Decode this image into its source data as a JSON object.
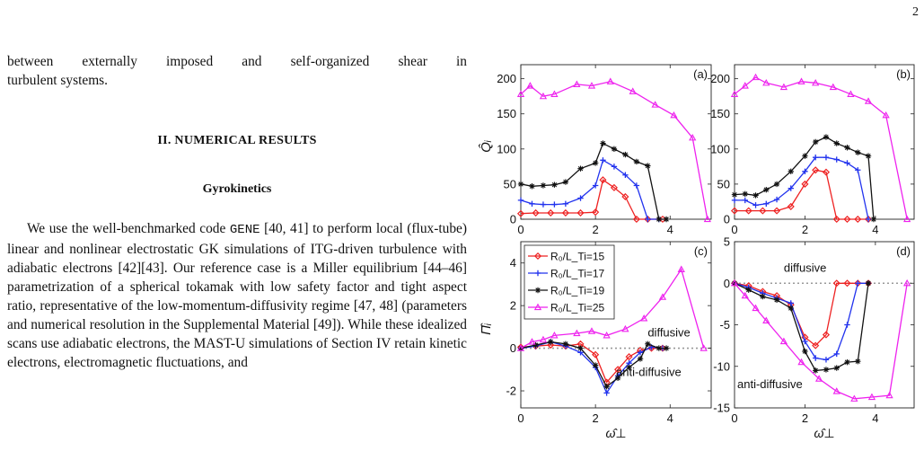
{
  "page": {
    "number": "2"
  },
  "text": {
    "intro_lines": [
      "between externally imposed and self-organized shear in",
      "turbulent systems."
    ],
    "section_heading": "II.   NUMERICAL RESULTS",
    "subsection_heading": "Gyrokinetics",
    "para1_start": "We use the well-benchmarked code ",
    "para1_code": "GENE",
    "para1_rest": " [40, 41] to perform local (flux-tube) linear and nonlinear electrostatic GK simulations of ITG-driven turbulence with adiabatic electrons [42][43]. Our reference case is a Miller equilibrium [44–46] parametrization of a spherical tokamak with low safety factor and tight aspect ratio, representative of the low-momentum-diffusivity regime [47, 48] (parameters and numerical resolution in the Supplemental Material [49]). While these idealized scans use adiabatic electrons, the MAST-U simulations of Section IV retain kinetic electrons, electromagnetic fluctuations, and"
  },
  "chart_data": [
    {
      "panel": "(a)",
      "type": "line",
      "ylabel": "Q̂ᵢ",
      "xlabel": "",
      "xlim": [
        0,
        5.1
      ],
      "ylim": [
        0,
        220
      ],
      "yticks": [
        "0",
        "50",
        "100",
        "150",
        "200"
      ],
      "xticks": [
        "0",
        "2",
        "4"
      ],
      "series": [
        {
          "name": "R₀/L_Ti=15",
          "color": "#ee2222",
          "marker": "diamond",
          "x": [
            0,
            0.4,
            0.8,
            1.2,
            1.6,
            2.0,
            2.2,
            2.5,
            2.8,
            3.1,
            3.4,
            3.8
          ],
          "y": [
            8,
            9,
            9,
            9,
            9,
            10,
            56,
            45,
            32,
            0,
            0,
            0
          ]
        },
        {
          "name": "R₀/L_Ti=17",
          "color": "#2233ee",
          "marker": "plus",
          "x": [
            0,
            0.3,
            0.6,
            0.9,
            1.2,
            1.6,
            2.0,
            2.2,
            2.5,
            2.8,
            3.1,
            3.4,
            3.7
          ],
          "y": [
            27,
            22,
            21,
            21,
            22,
            30,
            48,
            84,
            75,
            63,
            48,
            0,
            0
          ]
        },
        {
          "name": "R₀/L_Ti=19",
          "color": "#111111",
          "marker": "star",
          "x": [
            0,
            0.3,
            0.6,
            0.9,
            1.2,
            1.6,
            2.0,
            2.2,
            2.5,
            2.8,
            3.1,
            3.4,
            3.7,
            3.9
          ],
          "y": [
            50,
            47,
            48,
            49,
            53,
            72,
            80,
            108,
            100,
            92,
            82,
            76,
            0,
            0
          ]
        },
        {
          "name": "R₀/L_Ti=25",
          "color": "#ee22ee",
          "marker": "triangle",
          "x": [
            0,
            0.25,
            0.6,
            0.9,
            1.5,
            1.9,
            2.4,
            3.0,
            3.6,
            4.1,
            4.6,
            5.0
          ],
          "y": [
            178,
            190,
            175,
            178,
            192,
            190,
            196,
            182,
            163,
            148,
            116,
            0
          ]
        }
      ]
    },
    {
      "panel": "(b)",
      "type": "line",
      "ylabel": "",
      "xlabel": "",
      "xlim": [
        0,
        5.1
      ],
      "ylim": [
        0,
        220
      ],
      "yticks": [
        "0",
        "50",
        "100",
        "150",
        "200"
      ],
      "xticks": [
        "0",
        "2",
        "4"
      ],
      "series": [
        {
          "name": "R₀/L_Ti=15",
          "color": "#ee2222",
          "marker": "diamond",
          "x": [
            0,
            0.4,
            0.8,
            1.2,
            1.6,
            2.0,
            2.3,
            2.6,
            2.9,
            3.2,
            3.5,
            3.8
          ],
          "y": [
            12,
            12,
            12,
            12,
            18,
            50,
            70,
            67,
            0,
            0,
            0,
            0
          ]
        },
        {
          "name": "R₀/L_Ti=17",
          "color": "#2233ee",
          "marker": "plus",
          "x": [
            0,
            0.3,
            0.6,
            0.9,
            1.2,
            1.6,
            2.0,
            2.3,
            2.6,
            2.9,
            3.2,
            3.5,
            3.8
          ],
          "y": [
            27,
            27,
            20,
            22,
            28,
            44,
            68,
            88,
            88,
            85,
            80,
            70,
            0
          ]
        },
        {
          "name": "R₀/L_Ti=19",
          "color": "#111111",
          "marker": "star",
          "x": [
            0,
            0.3,
            0.6,
            0.9,
            1.2,
            1.6,
            2.0,
            2.3,
            2.6,
            2.9,
            3.2,
            3.5,
            3.8,
            3.95
          ],
          "y": [
            35,
            36,
            34,
            42,
            50,
            68,
            90,
            110,
            117,
            108,
            102,
            95,
            90,
            0
          ]
        },
        {
          "name": "R₀/L_Ti=25",
          "color": "#ee22ee",
          "marker": "triangle",
          "x": [
            0,
            0.3,
            0.6,
            0.9,
            1.4,
            1.9,
            2.3,
            2.8,
            3.3,
            3.8,
            4.3,
            4.9
          ],
          "y": [
            178,
            190,
            202,
            194,
            188,
            196,
            194,
            188,
            178,
            168,
            148,
            0
          ]
        }
      ]
    },
    {
      "panel": "(c)",
      "type": "line",
      "ylabel": "Π̂ᵢ",
      "xlabel": "ω̂⊥",
      "xlim": [
        0,
        5.1
      ],
      "ylim": [
        -2.8,
        5
      ],
      "yticks": [
        "-2",
        "0",
        "2",
        "4"
      ],
      "xticks": [
        "0",
        "2",
        "4"
      ],
      "legend": "top-left",
      "annotations": [
        "diffusive",
        "anti-diffusive"
      ],
      "series": [
        {
          "name": "R₀/L_Ti=15",
          "color": "#ee2222",
          "marker": "diamond",
          "x": [
            0,
            0.4,
            0.8,
            1.2,
            1.6,
            2.0,
            2.3,
            2.6,
            2.9,
            3.2,
            3.5,
            3.8
          ],
          "y": [
            0.05,
            0.1,
            0.15,
            0.1,
            0.2,
            -0.3,
            -1.6,
            -1.0,
            -0.4,
            -0.1,
            0.0,
            0.0
          ]
        },
        {
          "name": "R₀/L_Ti=17",
          "color": "#2233ee",
          "marker": "plus",
          "x": [
            0,
            0.4,
            0.8,
            1.2,
            1.6,
            2.0,
            2.3,
            2.6,
            2.9,
            3.2,
            3.5,
            3.8
          ],
          "y": [
            0.0,
            0.1,
            0.3,
            0.1,
            -0.2,
            -0.9,
            -2.1,
            -1.3,
            -0.7,
            -0.2,
            0.05,
            0.0
          ]
        },
        {
          "name": "R₀/L_Ti=19",
          "color": "#111111",
          "marker": "star",
          "x": [
            0,
            0.4,
            0.8,
            1.2,
            1.6,
            2.0,
            2.3,
            2.6,
            2.9,
            3.2,
            3.4,
            3.7,
            3.9
          ],
          "y": [
            0.0,
            0.15,
            0.3,
            0.2,
            0.0,
            -0.8,
            -1.8,
            -1.4,
            -0.9,
            -0.5,
            0.2,
            0.0,
            0.0
          ]
        },
        {
          "name": "R₀/L_Ti=25",
          "color": "#ee22ee",
          "marker": "triangle",
          "x": [
            0,
            0.3,
            0.6,
            0.9,
            1.5,
            1.9,
            2.3,
            2.8,
            3.3,
            3.8,
            4.3,
            4.9
          ],
          "y": [
            0.0,
            0.3,
            0.4,
            0.6,
            0.7,
            0.8,
            0.6,
            0.9,
            1.4,
            2.4,
            3.7,
            0.0
          ]
        }
      ]
    },
    {
      "panel": "(d)",
      "type": "line",
      "ylabel": "",
      "xlabel": "ω̂⊥",
      "xlim": [
        0,
        5.1
      ],
      "ylim": [
        -15,
        5
      ],
      "yticks": [
        "-15",
        "-10",
        "-5",
        "0",
        "5"
      ],
      "xticks": [
        "0",
        "2",
        "4"
      ],
      "annotations": [
        "diffusive",
        "anti-diffusive"
      ],
      "series": [
        {
          "name": "R₀/L_Ti=15",
          "color": "#ee2222",
          "marker": "diamond",
          "x": [
            0,
            0.4,
            0.8,
            1.2,
            1.6,
            2.0,
            2.3,
            2.6,
            2.9,
            3.2,
            3.5,
            3.8
          ],
          "y": [
            0,
            -0.3,
            -1.0,
            -1.5,
            -2.6,
            -6.5,
            -7.5,
            -6.2,
            0,
            0,
            0,
            0
          ]
        },
        {
          "name": "R₀/L_Ti=17",
          "color": "#2233ee",
          "marker": "plus",
          "x": [
            0,
            0.4,
            0.8,
            1.2,
            1.6,
            2.0,
            2.3,
            2.6,
            2.9,
            3.2,
            3.5,
            3.8
          ],
          "y": [
            0,
            -0.5,
            -1.2,
            -1.8,
            -2.4,
            -7.0,
            -9.0,
            -9.2,
            -8.5,
            -5.0,
            0,
            0
          ]
        },
        {
          "name": "R₀/L_Ti=19",
          "color": "#111111",
          "marker": "star",
          "x": [
            0,
            0.4,
            0.8,
            1.2,
            1.6,
            2.0,
            2.3,
            2.6,
            2.9,
            3.2,
            3.5,
            3.8
          ],
          "y": [
            0,
            -0.8,
            -1.6,
            -2.0,
            -3.0,
            -8.2,
            -10.5,
            -10.4,
            -10.2,
            -9.5,
            -9.4,
            0
          ]
        },
        {
          "name": "R₀/L_Ti=25",
          "color": "#ee22ee",
          "marker": "triangle",
          "x": [
            0,
            0.3,
            0.6,
            0.9,
            1.4,
            1.9,
            2.4,
            2.9,
            3.4,
            3.9,
            4.4,
            4.9
          ],
          "y": [
            0,
            -1.5,
            -3.0,
            -4.5,
            -7.0,
            -9.5,
            -11.5,
            -13.0,
            -13.9,
            -13.7,
            -13.5,
            0
          ]
        }
      ]
    }
  ]
}
